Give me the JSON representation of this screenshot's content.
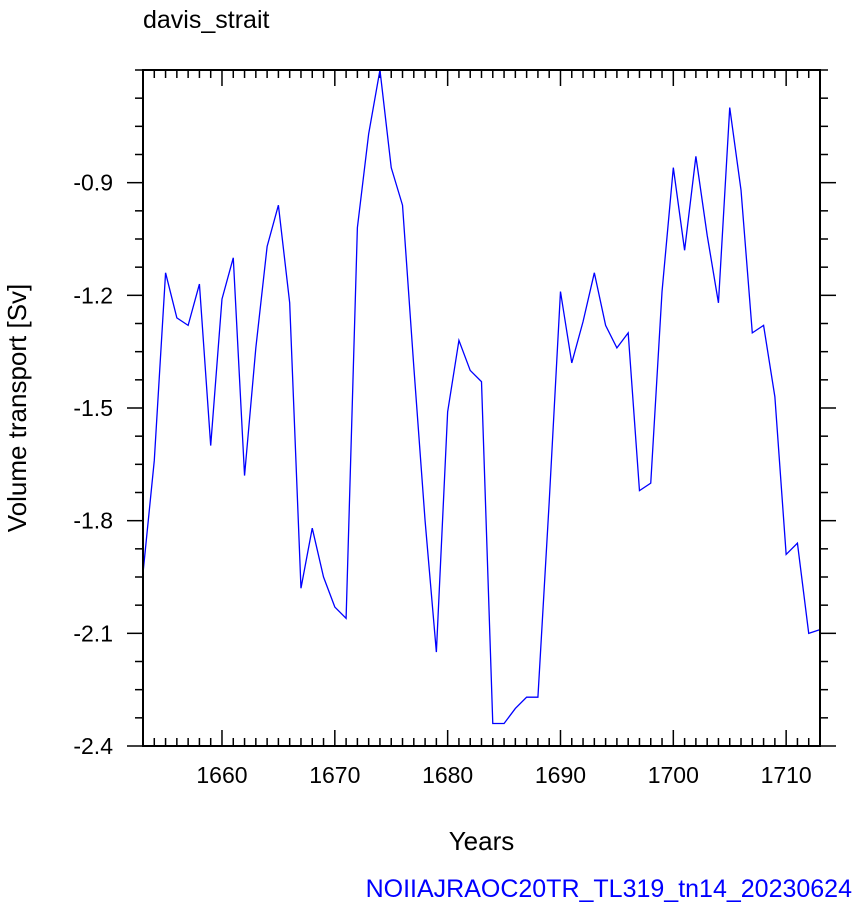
{
  "chart_data": {
    "type": "line",
    "title": "davis_strait",
    "xlabel": "Years",
    "ylabel": "Volume transport [Sv]",
    "footer": "NOIIAJRAOC20TR_TL319_tn14_20230624",
    "xlim": [
      1653,
      1713
    ],
    "ylim": [
      -2.4,
      -0.6
    ],
    "x_ticks": [
      1660,
      1670,
      1680,
      1690,
      1700,
      1710
    ],
    "x_tick_labels": [
      "1660",
      "1670",
      "1680",
      "1690",
      "1700",
      "1710"
    ],
    "y_ticks": [
      -2.4,
      -2.1,
      -1.8,
      -1.5,
      -1.2,
      -0.9
    ],
    "y_tick_labels": [
      "-2.4",
      "-2.1",
      "-1.8",
      "-1.5",
      "-1.2",
      "-0.9"
    ],
    "line_color": "#0000ff",
    "series": [
      {
        "x": [
          1653,
          1654,
          1655,
          1656,
          1657,
          1658,
          1659,
          1660,
          1661,
          1662,
          1663,
          1664,
          1665,
          1666,
          1667,
          1668,
          1669,
          1670,
          1671,
          1672,
          1673,
          1674,
          1675,
          1676,
          1677,
          1678,
          1679,
          1680,
          1681,
          1682,
          1683,
          1684,
          1685,
          1686,
          1687,
          1688,
          1689,
          1690,
          1691,
          1692,
          1693,
          1694,
          1695,
          1696,
          1697,
          1698,
          1699,
          1700,
          1701,
          1702,
          1703,
          1704,
          1705,
          1706,
          1707,
          1708,
          1709,
          1710,
          1711,
          1712,
          1713
        ],
        "values": [
          -1.94,
          -1.64,
          -1.14,
          -1.26,
          -1.28,
          -1.17,
          -1.6,
          -1.21,
          -1.1,
          -1.68,
          -1.34,
          -1.07,
          -0.96,
          -1.22,
          -1.98,
          -1.82,
          -1.95,
          -2.03,
          -2.06,
          -1.02,
          -0.77,
          -0.6,
          -0.86,
          -0.96,
          -1.39,
          -1.8,
          -2.15,
          -1.51,
          -1.32,
          -1.4,
          -1.43,
          -2.34,
          -2.34,
          -2.3,
          -2.27,
          -2.27,
          -1.75,
          -1.19,
          -1.38,
          -1.27,
          -1.14,
          -1.28,
          -1.34,
          -1.3,
          -1.72,
          -1.7,
          -1.19,
          -0.86,
          -1.08,
          -0.83,
          -1.04,
          -1.22,
          -0.7,
          -0.92,
          -1.3,
          -1.28,
          -1.47,
          -1.89,
          -1.86,
          -2.1,
          -2.09
        ]
      }
    ]
  }
}
